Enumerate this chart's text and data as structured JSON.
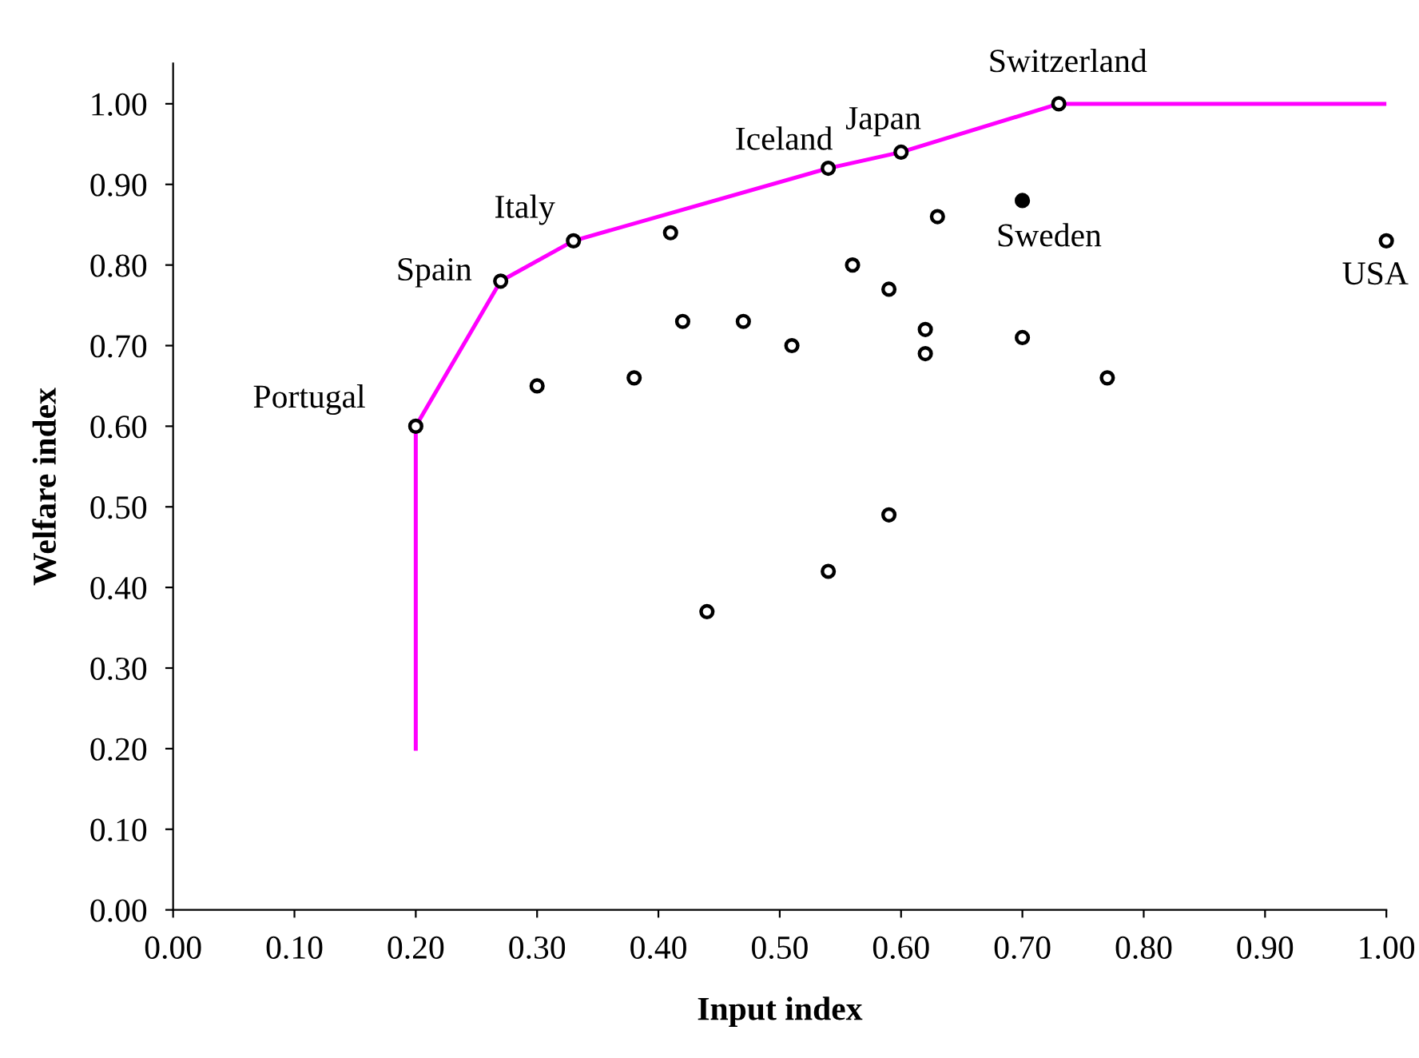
{
  "chart_data": {
    "type": "scatter",
    "xlabel": "Input index",
    "ylabel": "Welfare index",
    "xlim": [
      0,
      1
    ],
    "ylim": [
      0,
      1.05
    ],
    "xticks": [
      {
        "value": 0,
        "label": "0.00"
      },
      {
        "value": 0.1,
        "label": "0.10"
      },
      {
        "value": 0.2,
        "label": "0.20"
      },
      {
        "value": 0.3,
        "label": "0.30"
      },
      {
        "value": 0.4,
        "label": "0.40"
      },
      {
        "value": 0.5,
        "label": "0.50"
      },
      {
        "value": 0.6,
        "label": "0.60"
      },
      {
        "value": 0.7,
        "label": "0.70"
      },
      {
        "value": 0.8,
        "label": "0.80"
      },
      {
        "value": 0.9,
        "label": "0.90"
      },
      {
        "value": 1,
        "label": "1.00"
      }
    ],
    "yticks": [
      {
        "value": 0,
        "label": "0.00"
      },
      {
        "value": 0.1,
        "label": "0.10"
      },
      {
        "value": 0.2,
        "label": "0.20"
      },
      {
        "value": 0.3,
        "label": "0.30"
      },
      {
        "value": 0.4,
        "label": "0.40"
      },
      {
        "value": 0.5,
        "label": "0.50"
      },
      {
        "value": 0.6,
        "label": "0.60"
      },
      {
        "value": 0.7,
        "label": "0.70"
      },
      {
        "value": 0.8,
        "label": "0.80"
      },
      {
        "value": 0.9,
        "label": "0.90"
      },
      {
        "value": 1,
        "label": "1.00"
      }
    ],
    "grid": false,
    "legend": false,
    "series": [
      {
        "type": "line",
        "marker": "none",
        "color": "#ff00ff",
        "x": [
          0.2,
          0.2,
          0.27,
          0.33,
          0.54,
          0.6,
          0.73,
          1.0
        ],
        "values": [
          0.2,
          0.6,
          0.78,
          0.83,
          0.92,
          0.94,
          1.0,
          1.0
        ]
      },
      {
        "marker": "circle",
        "color": "#000000",
        "x": [
          0.2,
          0.27,
          0.33,
          0.54,
          0.6,
          0.73,
          1.0,
          0.41,
          0.3,
          0.38,
          0.42,
          0.47,
          0.51,
          0.56,
          0.59,
          0.63,
          0.62,
          0.62,
          0.7,
          0.77,
          0.59,
          0.54,
          0.44
        ],
        "values": [
          0.6,
          0.78,
          0.83,
          0.92,
          0.94,
          1.0,
          0.83,
          0.84,
          0.65,
          0.66,
          0.73,
          0.73,
          0.7,
          0.8,
          0.77,
          0.86,
          0.72,
          0.69,
          0.71,
          0.66,
          0.49,
          0.42,
          0.37
        ]
      },
      {
        "marker": "circle",
        "color": "#000000",
        "x": [
          0.7
        ],
        "values": [
          0.88
        ]
      }
    ],
    "annotations": [
      {
        "text": "Portugal",
        "x": 0.2,
        "y": 0.6
      },
      {
        "text": "Spain",
        "x": 0.27,
        "y": 0.78
      },
      {
        "text": "Italy",
        "x": 0.33,
        "y": 0.83
      },
      {
        "text": "Iceland",
        "x": 0.54,
        "y": 0.92
      },
      {
        "text": "Japan",
        "x": 0.6,
        "y": 0.94
      },
      {
        "text": "Switzerland",
        "x": 0.73,
        "y": 1.0
      },
      {
        "text": "Sweden",
        "x": 0.7,
        "y": 0.88
      },
      {
        "text": "USA",
        "x": 1.0,
        "y": 0.83
      }
    ]
  }
}
